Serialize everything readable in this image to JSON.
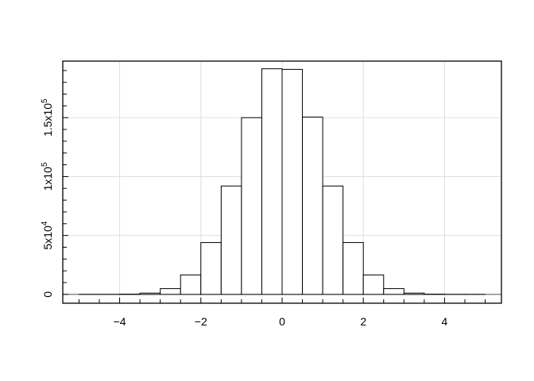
{
  "chart_data": {
    "type": "bar",
    "title": "",
    "xlabel": "",
    "ylabel": "",
    "bin_edges": [
      -5,
      -4.5,
      -4,
      -3.5,
      -3,
      -2.5,
      -2,
      -1.5,
      -1,
      -0.5,
      0,
      0.5,
      1,
      1.5,
      2,
      2.5,
      3,
      3.5,
      4,
      4.5,
      5
    ],
    "values": [
      3,
      29,
      200,
      1100,
      4900,
      16500,
      44000,
      92000,
      150000,
      191500,
      191000,
      150500,
      92000,
      44000,
      16500,
      4900,
      1100,
      200,
      29,
      3
    ],
    "xlim": [
      -5.4,
      5.4
    ],
    "ylim": [
      -7500,
      198000
    ],
    "x_ticks": [
      -4,
      -2,
      0,
      2,
      4
    ],
    "x_tick_labels": [
      "−4",
      "−2",
      "0",
      "2",
      "4"
    ],
    "y_ticks": [
      0,
      50000,
      100000,
      150000
    ],
    "y_tick_labels": [
      {
        "base": "0",
        "exp": ""
      },
      {
        "base": "5x10",
        "exp": "4"
      },
      {
        "base": "1x10",
        "exp": "5"
      },
      {
        "base": "1.5x10",
        "exp": "5"
      }
    ],
    "grid": true,
    "colors": {
      "bar_fill": "#ffffff",
      "bar_edge": "#000000",
      "grid": "#e0e0e0",
      "zero_line": "#555555"
    }
  }
}
